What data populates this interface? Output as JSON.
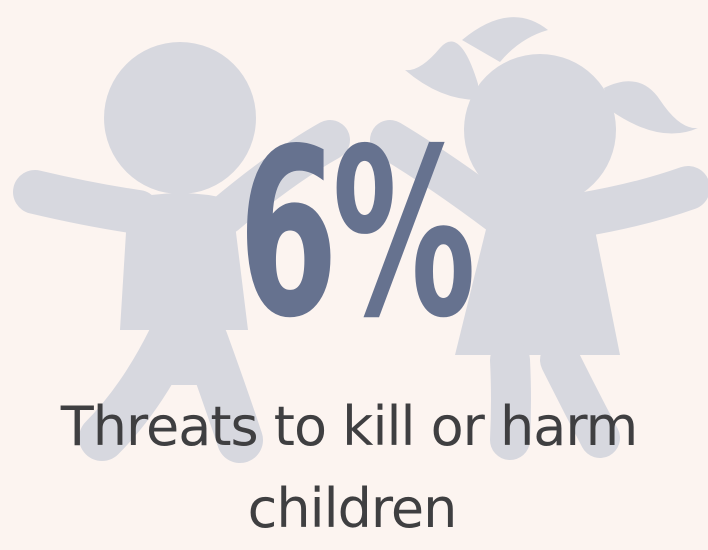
{
  "stat": {
    "value": "6%"
  },
  "caption": {
    "line1": "Threats to kill or harm",
    "line2": "children"
  },
  "colors": {
    "background": "#fcf4f0",
    "figure": "#d7d8df",
    "stat": "#66728f",
    "caption": "#3f3f41"
  },
  "illustration": {
    "icon": "children-holding-hands-icon"
  }
}
